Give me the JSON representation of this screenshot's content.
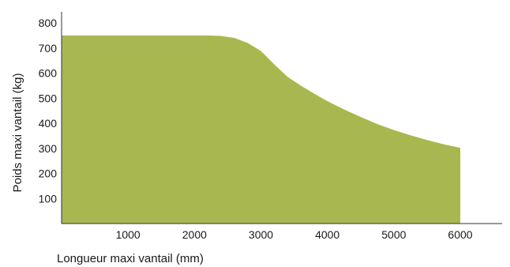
{
  "chart_data": {
    "type": "area",
    "title": "",
    "xlabel": "Longueur maxi vantail (mm)",
    "ylabel": "Poids maxi vantail (kg)",
    "xlim": [
      0,
      6600
    ],
    "ylim": [
      0,
      850
    ],
    "x_ticks": [
      1000,
      2000,
      3000,
      4000,
      5000,
      6000
    ],
    "y_ticks": [
      100,
      200,
      300,
      400,
      500,
      600,
      700,
      800
    ],
    "grid": false,
    "legend": "none",
    "fill_color": "#a9b750",
    "series": [
      {
        "x": [
          0,
          500,
          1000,
          1500,
          2000,
          2200,
          2400,
          2600,
          2800,
          3000,
          3200,
          3400,
          3600,
          3800,
          4000,
          4250,
          4500,
          4750,
          5000,
          5250,
          5500,
          5750,
          6000
        ],
        "values": [
          750,
          750,
          750,
          750,
          750,
          750,
          748,
          740,
          720,
          688,
          635,
          585,
          550,
          518,
          488,
          455,
          425,
          397,
          373,
          352,
          333,
          316,
          302
        ]
      }
    ]
  }
}
